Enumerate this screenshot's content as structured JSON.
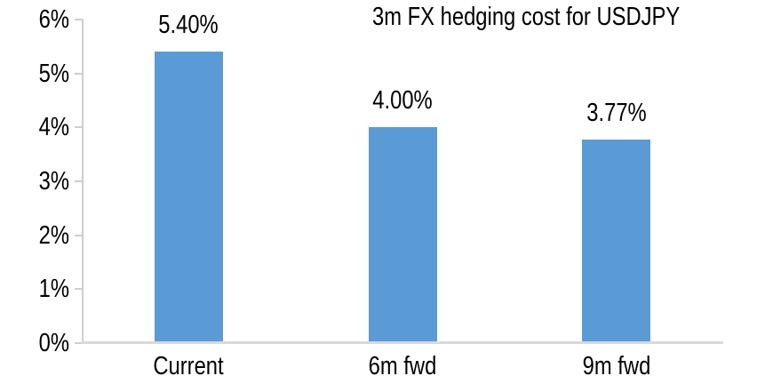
{
  "chart_data": {
    "type": "bar",
    "title": "3m FX hedging cost for USDJPY",
    "categories": [
      "Current",
      "6m fwd",
      "9m fwd"
    ],
    "values": [
      5.4,
      4.0,
      3.77
    ],
    "data_labels": [
      "5.40%",
      "4.00%",
      "3.77%"
    ],
    "y_tick_labels": [
      "0%",
      "1%",
      "2%",
      "3%",
      "4%",
      "5%",
      "6%"
    ],
    "y_tick_values": [
      0,
      1,
      2,
      3,
      4,
      5,
      6
    ],
    "ylim": [
      0,
      6
    ],
    "xlabel": "",
    "ylabel": "",
    "unit": "%",
    "grid": false,
    "legend_position": "none",
    "bar_color": "#5B9BD5",
    "axis_color": "#D0CECE",
    "x_axis_color": "#D9D9D9",
    "text_color": "#000000",
    "background_color": "#FFFFFF"
  }
}
